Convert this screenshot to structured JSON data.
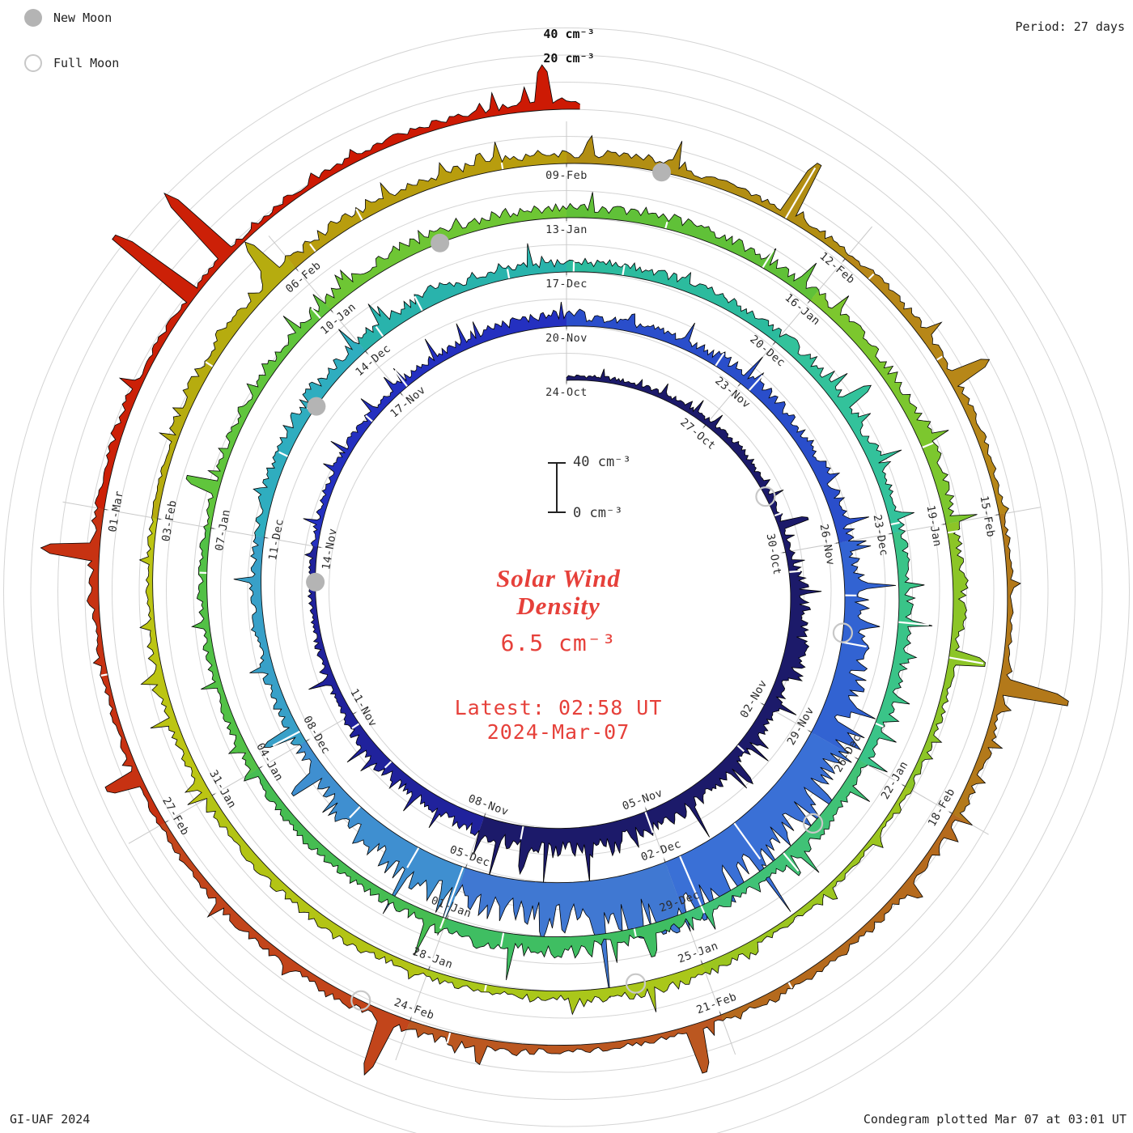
{
  "page": {
    "legend": {
      "new_moon": "New Moon",
      "full_moon": "Full Moon"
    },
    "period_label": "Period: 27 days",
    "credit_left": "GI-UAF 2024",
    "credit_right": "Condegram plotted Mar 07 at 03:01 UT",
    "outer_scale_top": "40 cm⁻³",
    "outer_scale_inner": "20 cm⁻³",
    "center": {
      "title_line1": "Solar Wind",
      "title_line2": "Density",
      "value": "6.5 cm⁻³",
      "latest_line1": "Latest: 02:58 UT",
      "latest_line2": "2024-Mar-07",
      "scale_top_label": "40 cm⁻³",
      "scale_bottom_label": "0 cm⁻³",
      "accent_color": "#e6403a"
    },
    "colors": {
      "new_moon_fill": "#b4b4b4",
      "full_moon_stroke": "#c8c8c8",
      "grid": "#d4d4d4",
      "ink": "#111111"
    }
  },
  "chart_data": {
    "type": "spiral-time-series-condegram",
    "quantity": "Solar Wind Density",
    "units": "cm⁻³",
    "period_days": 27,
    "start_label": "24-Oct",
    "end_label": "2024-Mar-07",
    "latest_value": 6.5,
    "latest_time": "02:58 UT 2024-Mar-07",
    "radial_scale": {
      "tick_values": [
        0,
        20,
        40
      ],
      "units": "cm⁻³"
    },
    "date_labels": [
      {
        "day": 0,
        "label": "24-Oct"
      },
      {
        "day": 3,
        "label": "27-Oct"
      },
      {
        "day": 6,
        "label": "30-Oct"
      },
      {
        "day": 9,
        "label": "02-Nov"
      },
      {
        "day": 12,
        "label": "05-Nov"
      },
      {
        "day": 15,
        "label": "08-Nov"
      },
      {
        "day": 18,
        "label": "11-Nov"
      },
      {
        "day": 21,
        "label": "14-Nov"
      },
      {
        "day": 24,
        "label": "17-Nov"
      },
      {
        "day": 27,
        "label": "20-Nov"
      },
      {
        "day": 30,
        "label": "23-Nov"
      },
      {
        "day": 33,
        "label": "26-Nov"
      },
      {
        "day": 36,
        "label": "29-Nov"
      },
      {
        "day": 39,
        "label": "02-Dec"
      },
      {
        "day": 42,
        "label": "05-Dec"
      },
      {
        "day": 45,
        "label": "08-Dec"
      },
      {
        "day": 48,
        "label": "11-Dec"
      },
      {
        "day": 51,
        "label": "14-Dec"
      },
      {
        "day": 54,
        "label": "17-Dec"
      },
      {
        "day": 57,
        "label": "20-Dec"
      },
      {
        "day": 60,
        "label": "23-Dec"
      },
      {
        "day": 63,
        "label": "26-Dec"
      },
      {
        "day": 66,
        "label": "29-Dec"
      },
      {
        "day": 69,
        "label": "01-Jan"
      },
      {
        "day": 72,
        "label": "04-Jan"
      },
      {
        "day": 75,
        "label": "07-Jan"
      },
      {
        "day": 78,
        "label": "10-Jan"
      },
      {
        "day": 81,
        "label": "13-Jan"
      },
      {
        "day": 84,
        "label": "16-Jan"
      },
      {
        "day": 87,
        "label": "19-Jan"
      },
      {
        "day": 90,
        "label": "22-Jan"
      },
      {
        "day": 93,
        "label": "25-Jan"
      },
      {
        "day": 96,
        "label": "28-Jan"
      },
      {
        "day": 99,
        "label": "31-Jan"
      },
      {
        "day": 102,
        "label": "03-Feb"
      },
      {
        "day": 105,
        "label": "06-Feb"
      },
      {
        "day": 108,
        "label": "09-Feb"
      },
      {
        "day": 111,
        "label": "12-Feb"
      },
      {
        "day": 114,
        "label": "15-Feb"
      },
      {
        "day": 117,
        "label": "18-Feb"
      },
      {
        "day": 120,
        "label": "21-Feb"
      },
      {
        "day": 123,
        "label": "24-Feb"
      },
      {
        "day": 126,
        "label": "27-Feb"
      },
      {
        "day": 129,
        "label": "01-Mar"
      }
    ],
    "density_envelope": [
      [
        0,
        4
      ],
      [
        3,
        7
      ],
      [
        6,
        9
      ],
      [
        9,
        16
      ],
      [
        12,
        22
      ],
      [
        15,
        18
      ],
      [
        18,
        7
      ],
      [
        21,
        5
      ],
      [
        24,
        9
      ],
      [
        27,
        11
      ],
      [
        30,
        14
      ],
      [
        33,
        16
      ],
      [
        36,
        28
      ],
      [
        39,
        42
      ],
      [
        41,
        30
      ],
      [
        45,
        10
      ],
      [
        48,
        7
      ],
      [
        51,
        11
      ],
      [
        54,
        14
      ],
      [
        57,
        13
      ],
      [
        60,
        9
      ],
      [
        63,
        8
      ],
      [
        66,
        13
      ],
      [
        69,
        10
      ],
      [
        72,
        8
      ],
      [
        75,
        6
      ],
      [
        78,
        9
      ],
      [
        81,
        11
      ],
      [
        84,
        9
      ],
      [
        87,
        7
      ],
      [
        90,
        6
      ],
      [
        93,
        8
      ],
      [
        96,
        9
      ],
      [
        99,
        7
      ],
      [
        102,
        6
      ],
      [
        105,
        9
      ],
      [
        108,
        7
      ],
      [
        111,
        9
      ],
      [
        114,
        7
      ],
      [
        117,
        6
      ],
      [
        120,
        7
      ],
      [
        123,
        9
      ],
      [
        126,
        7
      ],
      [
        129,
        6
      ],
      [
        132,
        5
      ],
      [
        135.1,
        6.5
      ]
    ],
    "spikes": [
      [
        5.5,
        25
      ],
      [
        10.2,
        28
      ],
      [
        14.2,
        36
      ],
      [
        39.3,
        55
      ],
      [
        40.1,
        50
      ],
      [
        40.8,
        44
      ],
      [
        44.5,
        34
      ],
      [
        45.2,
        30
      ],
      [
        58.2,
        30
      ],
      [
        66.5,
        26
      ],
      [
        75.5,
        28
      ],
      [
        88.5,
        30
      ],
      [
        104.8,
        40
      ],
      [
        110.3,
        52
      ],
      [
        112.6,
        34
      ],
      [
        115.7,
        58
      ],
      [
        120.3,
        40
      ],
      [
        123.2,
        50
      ],
      [
        126.5,
        30
      ],
      [
        128.6,
        44
      ],
      [
        131.1,
        82
      ],
      [
        131.6,
        68
      ],
      [
        134.8,
        34
      ]
    ],
    "color_stops": [
      [
        0,
        "#1c1a6a"
      ],
      [
        15,
        "#20229c"
      ],
      [
        21,
        "#2430c0"
      ],
      [
        27,
        "#2a4ecb"
      ],
      [
        33,
        "#3263d2"
      ],
      [
        36,
        "#3a70d6"
      ],
      [
        39,
        "#4078d2"
      ],
      [
        42,
        "#3f8fd0"
      ],
      [
        45,
        "#38a0c8"
      ],
      [
        48,
        "#2fadbf"
      ],
      [
        51,
        "#29b3ac"
      ],
      [
        54,
        "#2cbb9e"
      ],
      [
        57,
        "#33c29b"
      ],
      [
        60,
        "#3ac488"
      ],
      [
        63,
        "#40c276"
      ],
      [
        66,
        "#3fbe62"
      ],
      [
        69,
        "#46bd52"
      ],
      [
        72,
        "#52c146"
      ],
      [
        75,
        "#60c53c"
      ],
      [
        78,
        "#6ec634"
      ],
      [
        81,
        "#60c138"
      ],
      [
        84,
        "#7cc72e"
      ],
      [
        87,
        "#8cc527"
      ],
      [
        90,
        "#9cc61f"
      ],
      [
        93,
        "#aac71a"
      ],
      [
        96,
        "#b3c415"
      ],
      [
        99,
        "#bcc513"
      ],
      [
        102,
        "#b6ac0f"
      ],
      [
        105,
        "#b89d0e"
      ],
      [
        108,
        "#b28e13"
      ],
      [
        111,
        "#b78718"
      ],
      [
        114,
        "#b3791a"
      ],
      [
        117,
        "#b56a1d"
      ],
      [
        120,
        "#bb5720"
      ],
      [
        123,
        "#c2451b"
      ],
      [
        126,
        "#c73212"
      ],
      [
        129,
        "#cc2007"
      ],
      [
        132,
        "#cd1a04"
      ]
    ],
    "new_moon_days": [
      20.4,
      49.98,
      79.5,
      108.96
    ],
    "full_moon_days": [
      4.85,
      34.4,
      64.0,
      93.75,
      123.5
    ]
  }
}
